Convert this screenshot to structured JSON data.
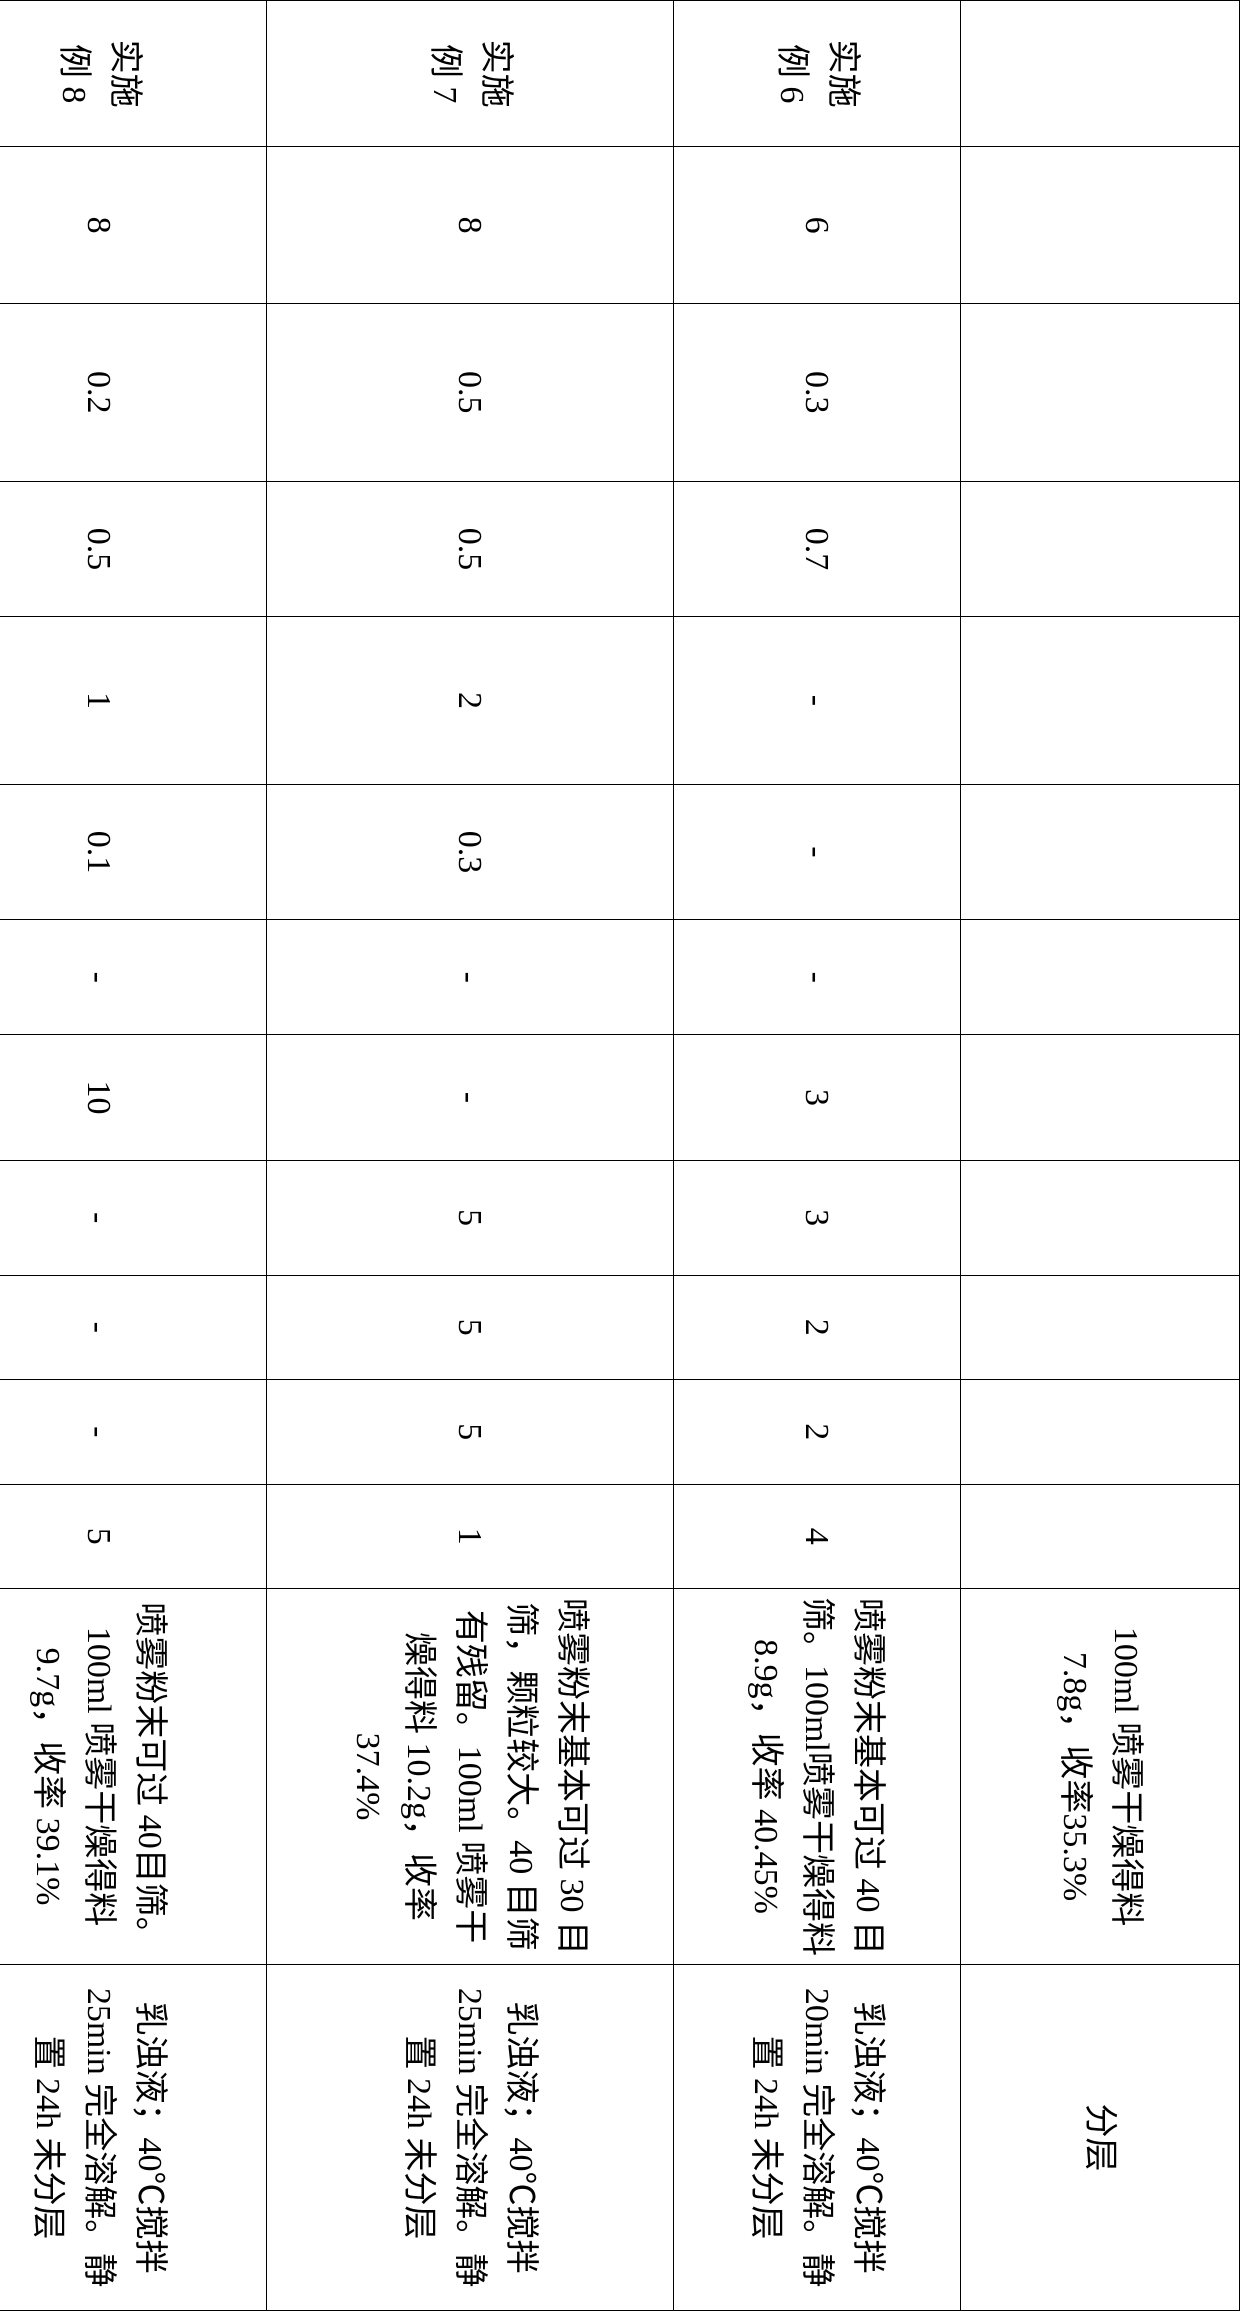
{
  "table": {
    "top_row": {
      "result": "100ml 喷雾干燥得料 7.8g，收率35.3%",
      "obs": "分层"
    },
    "rows": [
      {
        "label_l1": "实施",
        "label_l2": "例 6",
        "c": [
          "6",
          "0.3",
          "0.7",
          "-",
          "-",
          "-",
          "3",
          "3",
          "2",
          "2",
          "4"
        ],
        "result": "喷雾粉末基本可过 40 目筛。100ml喷雾干燥得料8.9g，收率 40.45%",
        "obs": "乳浊液；40℃搅拌 20min 完全溶解。静置 24h 未分层"
      },
      {
        "label_l1": "实施",
        "label_l2": "例 7",
        "c": [
          "8",
          "0.5",
          "0.5",
          "2",
          "0.3",
          "-",
          "-",
          "5",
          "5",
          "5",
          "1"
        ],
        "result": "喷雾粉末基本可过 30 目筛，颗粒较大。40 目筛有残留。100ml 喷雾干燥得料 10.2g，收率 37.4%",
        "obs": "乳浊液；40℃搅拌 25min 完全溶解。静置 24h 未分层"
      },
      {
        "label_l1": "实施",
        "label_l2": "例 8",
        "c": [
          "8",
          "0.2",
          "0.5",
          "1",
          "0.1",
          "-",
          "10",
          "-",
          "-",
          "-",
          "5"
        ],
        "result": "喷雾粉末可过 40目筛。100ml 喷雾干燥得料 9.7g，收率 39.1%",
        "obs": "乳浊液；40℃搅拌 25min 完全溶解。静置 24h 未分层"
      }
    ]
  }
}
